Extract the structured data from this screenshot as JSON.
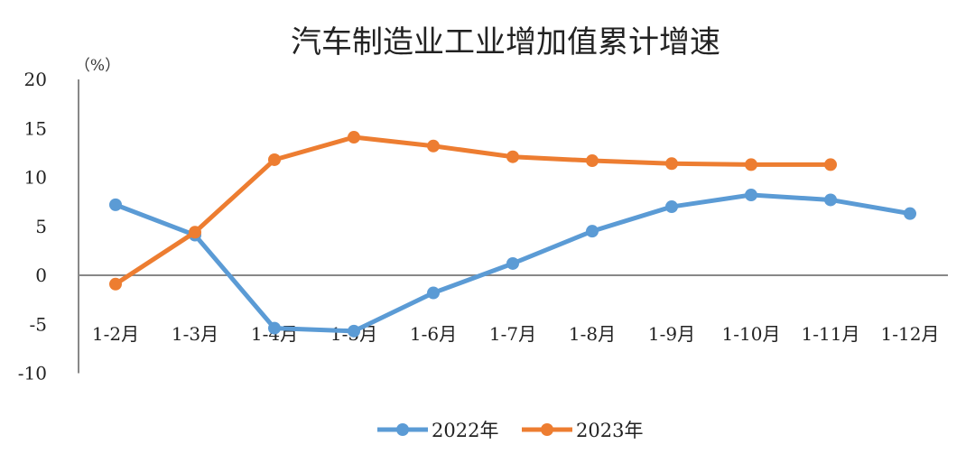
{
  "chart_data": {
    "type": "line",
    "title": "汽车制造业工业增加值累计增速",
    "unit": "（%）",
    "categories": [
      "1-2月",
      "1-3月",
      "1-4月",
      "1-5月",
      "1-6月",
      "1-7月",
      "1-8月",
      "1-9月",
      "1-10月",
      "1-11月",
      "1-12月"
    ],
    "ylim": [
      -10,
      20
    ],
    "yticks": [
      20,
      15,
      10,
      5,
      0,
      -5,
      -10
    ],
    "negative_tick_color": "#ff0000",
    "grid": false,
    "legend": "bottom",
    "series": [
      {
        "name": "2022年",
        "color": "#5b9bd5",
        "values": [
          7.2,
          4.1,
          -5.4,
          -5.7,
          -1.8,
          1.2,
          4.5,
          7.0,
          8.2,
          7.7,
          6.3
        ]
      },
      {
        "name": "2023年",
        "color": "#ed7d31",
        "values": [
          -0.9,
          4.4,
          11.8,
          14.1,
          13.2,
          12.1,
          11.7,
          11.4,
          11.3,
          11.3,
          null
        ]
      }
    ]
  }
}
